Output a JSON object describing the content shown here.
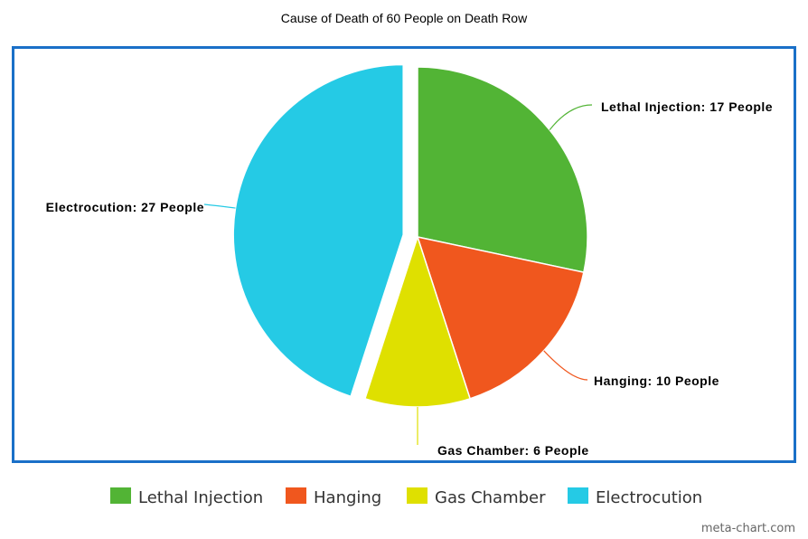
{
  "chart_data": {
    "type": "pie",
    "title": "Cause of Death of 60 People on Death Row",
    "categories": [
      "Lethal Injection",
      "Hanging",
      "Gas Chamber",
      "Electrocution"
    ],
    "values": [
      17,
      10,
      6,
      27
    ],
    "data_labels": [
      "Lethal Injection: 17 People",
      "Hanging: 10 People",
      "Gas Chamber: 6 People",
      "Electrocution: 27 People"
    ],
    "colors": [
      "#52b435",
      "#f0571e",
      "#dfe000",
      "#25cae5"
    ],
    "exploded": "Electrocution",
    "legend_placement": "bottom",
    "border_color": "#1a70c8"
  },
  "credit": "meta-chart.com"
}
